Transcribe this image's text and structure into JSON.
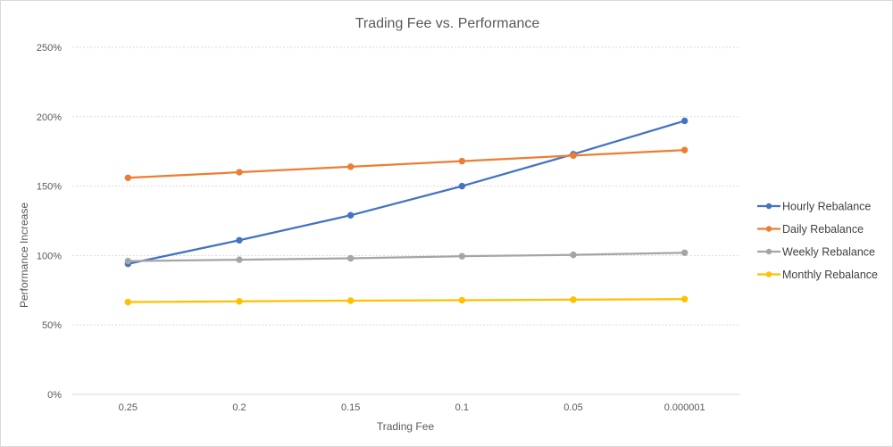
{
  "chart_data": {
    "type": "line",
    "title": "Trading Fee vs. Performance",
    "xlabel": "Trading Fee",
    "ylabel": "Performance Increase",
    "categories": [
      "0.25",
      "0.2",
      "0.15",
      "0.1",
      "0.05",
      "0.000001"
    ],
    "ylim": [
      0,
      2.5
    ],
    "yticks": [
      "0%",
      "50%",
      "100%",
      "150%",
      "200%",
      "250%"
    ],
    "ytick_values": [
      0,
      0.5,
      1.0,
      1.5,
      2.0,
      2.5
    ],
    "grid": true,
    "legend_position": "right",
    "series": [
      {
        "name": "Hourly Rebalance",
        "color": "#4472C4",
        "values": [
          0.94,
          1.11,
          1.29,
          1.5,
          1.73,
          1.97
        ]
      },
      {
        "name": "Daily Rebalance",
        "color": "#ED7D31",
        "values": [
          1.56,
          1.6,
          1.64,
          1.68,
          1.72,
          1.76
        ]
      },
      {
        "name": "Weekly Rebalance",
        "color": "#A5A5A5",
        "values": [
          0.96,
          0.97,
          0.98,
          0.995,
          1.005,
          1.02
        ]
      },
      {
        "name": "Monthly Rebalance",
        "color": "#FFC000",
        "values": [
          0.665,
          0.67,
          0.675,
          0.678,
          0.682,
          0.686
        ]
      }
    ]
  }
}
